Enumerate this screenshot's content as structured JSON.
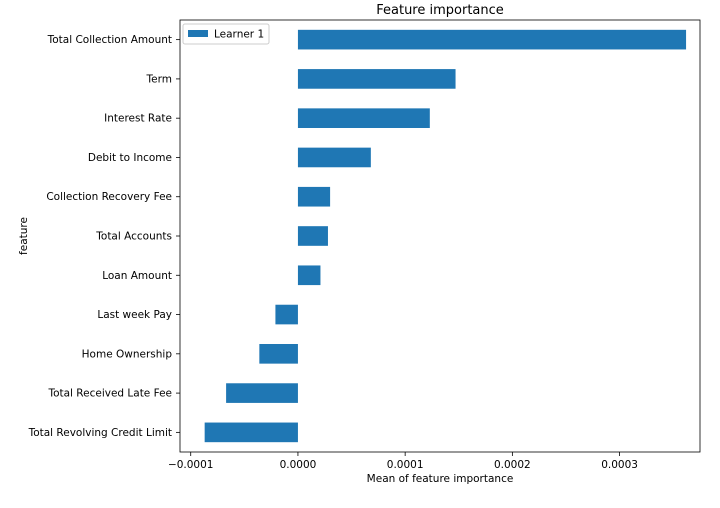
{
  "chart_data": {
    "type": "bar",
    "orientation": "horizontal",
    "title": "Feature importance",
    "xlabel": "Mean of feature importance",
    "ylabel": "feature",
    "xlim": [
      -0.00011,
      0.000375
    ],
    "xticks": [
      -0.0001,
      0.0,
      0.0001,
      0.0002,
      0.0003
    ],
    "xtick_labels": [
      "−0.0001",
      "0.0000",
      "0.0001",
      "0.0002",
      "0.0003"
    ],
    "categories": [
      "Total Collection Amount",
      "Term",
      "Interest Rate",
      "Debit to Income",
      "Collection Recovery Fee",
      "Total Accounts",
      "Loan Amount",
      "Last week Pay",
      "Home Ownership",
      "Total Received Late Fee",
      "Total Revolving Credit Limit"
    ],
    "series": [
      {
        "name": "Learner 1",
        "color": "#1f77b4",
        "values": [
          0.000362,
          0.000147,
          0.000123,
          6.8e-05,
          3e-05,
          2.8e-05,
          2.1e-05,
          -2.1e-05,
          -3.6e-05,
          -6.7e-05,
          -8.7e-05
        ]
      }
    ],
    "legend": {
      "position": "top-left"
    },
    "grid": false
  }
}
